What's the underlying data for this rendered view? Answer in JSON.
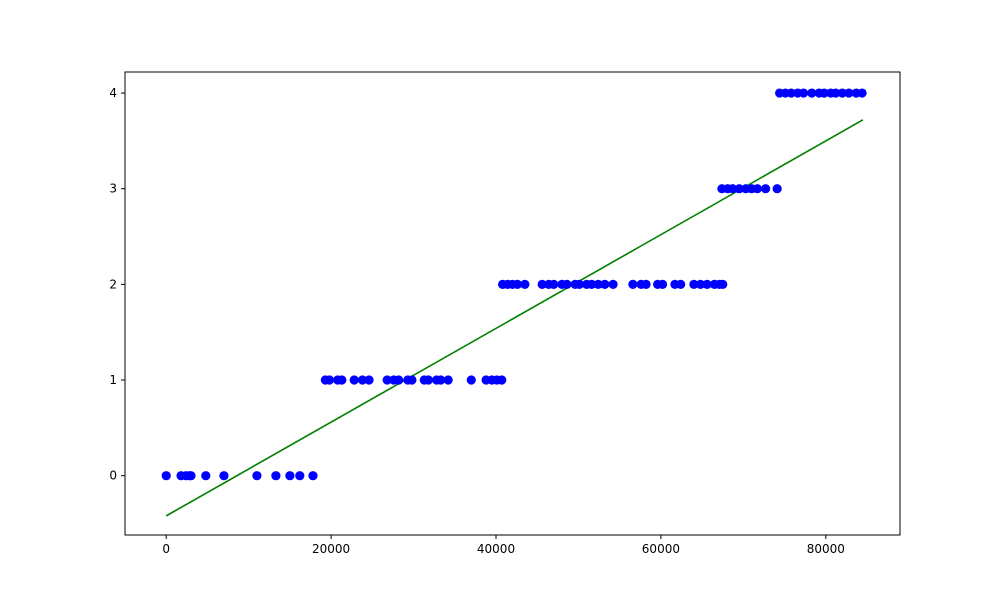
{
  "chart_data": {
    "type": "scatter",
    "title": "",
    "xlabel": "",
    "ylabel": "",
    "xlim": [
      -5000,
      89000
    ],
    "ylim": [
      -0.62,
      4.22
    ],
    "xticks": [
      0,
      20000,
      40000,
      60000,
      80000
    ],
    "xtick_labels": [
      "0",
      "20000",
      "40000",
      "60000",
      "80000"
    ],
    "yticks": [
      0,
      1,
      2,
      3,
      4
    ],
    "ytick_labels": [
      "0",
      "1",
      "2",
      "3",
      "4"
    ],
    "grid": false,
    "series": [
      {
        "type": "scatter",
        "color": "#0000ff",
        "points": [
          [
            0,
            0
          ],
          [
            1800,
            0
          ],
          [
            2400,
            0
          ],
          [
            2800,
            0
          ],
          [
            3000,
            0
          ],
          [
            4800,
            0
          ],
          [
            7000,
            0
          ],
          [
            11000,
            0
          ],
          [
            13300,
            0
          ],
          [
            15000,
            0
          ],
          [
            16200,
            0
          ],
          [
            17800,
            0
          ],
          [
            19300,
            1
          ],
          [
            19800,
            1
          ],
          [
            20800,
            1
          ],
          [
            21300,
            1
          ],
          [
            22800,
            1
          ],
          [
            23800,
            1
          ],
          [
            24600,
            1
          ],
          [
            26800,
            1
          ],
          [
            27600,
            1
          ],
          [
            28200,
            1
          ],
          [
            29300,
            1
          ],
          [
            29800,
            1
          ],
          [
            31300,
            1
          ],
          [
            31800,
            1
          ],
          [
            32800,
            1
          ],
          [
            33300,
            1
          ],
          [
            34200,
            1
          ],
          [
            37000,
            1
          ],
          [
            38800,
            1
          ],
          [
            39500,
            1
          ],
          [
            40100,
            1
          ],
          [
            40700,
            1
          ],
          [
            40800,
            2
          ],
          [
            41400,
            2
          ],
          [
            42000,
            2
          ],
          [
            42600,
            2
          ],
          [
            43500,
            2
          ],
          [
            45600,
            2
          ],
          [
            46400,
            2
          ],
          [
            47000,
            2
          ],
          [
            48000,
            2
          ],
          [
            48600,
            2
          ],
          [
            49600,
            2
          ],
          [
            50100,
            2
          ],
          [
            51000,
            2
          ],
          [
            51600,
            2
          ],
          [
            52400,
            2
          ],
          [
            53200,
            2
          ],
          [
            54200,
            2
          ],
          [
            56600,
            2
          ],
          [
            57600,
            2
          ],
          [
            58200,
            2
          ],
          [
            59600,
            2
          ],
          [
            60200,
            2
          ],
          [
            61700,
            2
          ],
          [
            62400,
            2
          ],
          [
            64000,
            2
          ],
          [
            64800,
            2
          ],
          [
            65600,
            2
          ],
          [
            66500,
            2
          ],
          [
            67100,
            2
          ],
          [
            67500,
            2
          ],
          [
            67400,
            3
          ],
          [
            68100,
            3
          ],
          [
            68700,
            3
          ],
          [
            69500,
            3
          ],
          [
            70300,
            3
          ],
          [
            71000,
            3
          ],
          [
            71700,
            3
          ],
          [
            72700,
            3
          ],
          [
            74100,
            3
          ],
          [
            74400,
            4
          ],
          [
            75100,
            4
          ],
          [
            75800,
            4
          ],
          [
            76600,
            4
          ],
          [
            77300,
            4
          ],
          [
            78300,
            4
          ],
          [
            79200,
            4
          ],
          [
            79800,
            4
          ],
          [
            80600,
            4
          ],
          [
            81200,
            4
          ],
          [
            82000,
            4
          ],
          [
            82800,
            4
          ],
          [
            83700,
            4
          ],
          [
            84400,
            4
          ]
        ]
      },
      {
        "type": "line",
        "color": "#008000",
        "points": [
          [
            0,
            -0.42
          ],
          [
            84500,
            3.72
          ]
        ]
      }
    ]
  }
}
